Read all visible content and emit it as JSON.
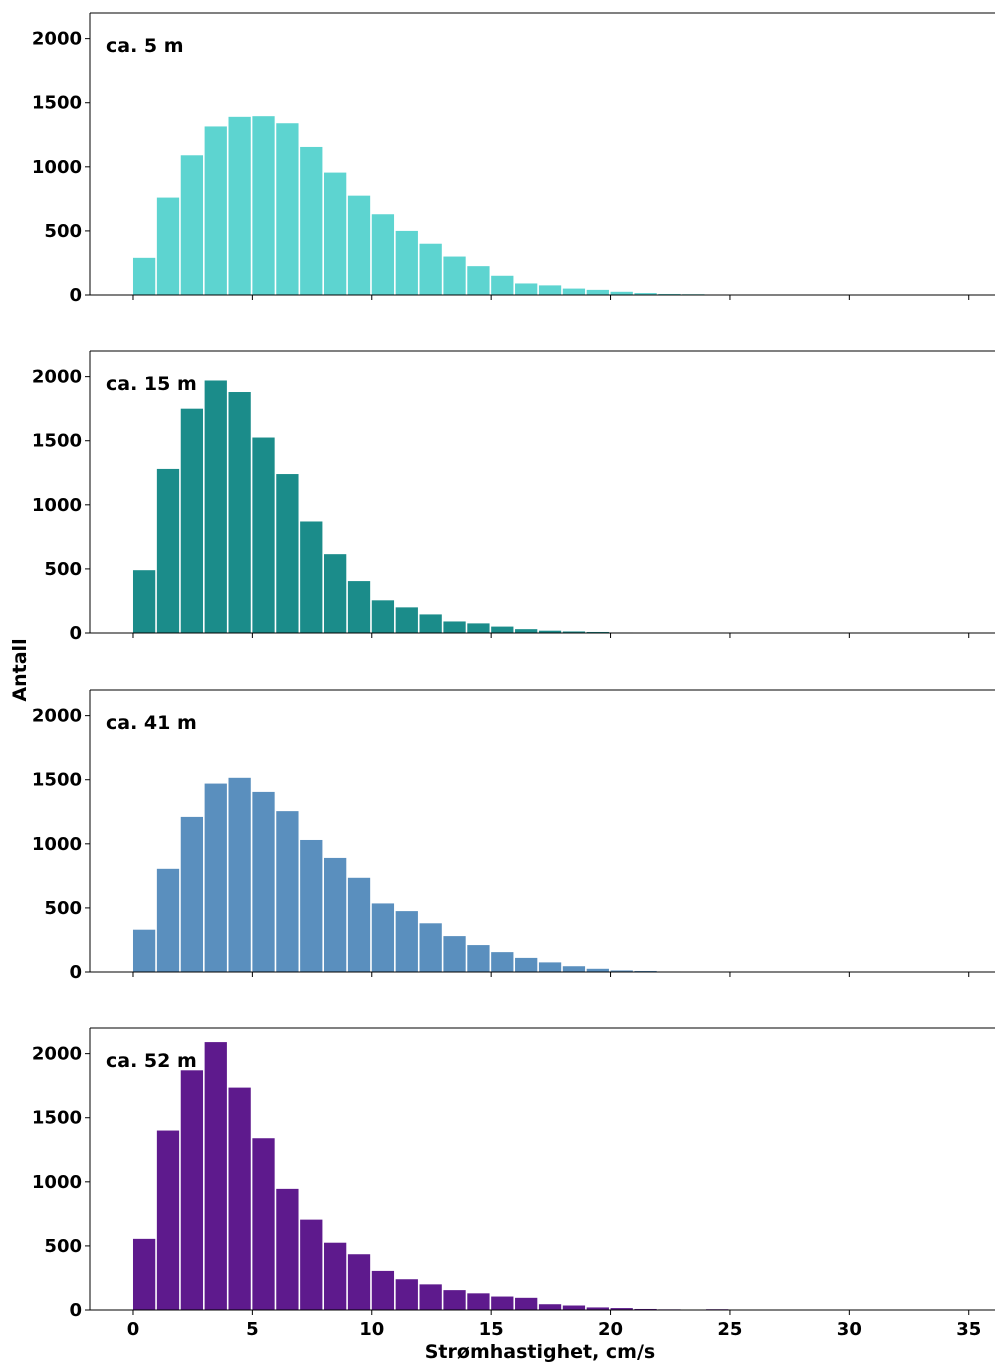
{
  "chart_data": {
    "type": "bar",
    "xlabel": "Strømhastighet, cm/s",
    "ylabel": "Antall",
    "xlim": [
      -1.8,
      36.1
    ],
    "ylim": [
      0,
      2200
    ],
    "x_ticks": [
      0,
      5,
      10,
      15,
      20,
      25,
      30,
      35
    ],
    "y_ticks": [
      0,
      500,
      1000,
      1500,
      2000
    ],
    "bin_width": 1,
    "x": [
      0,
      1,
      2,
      3,
      4,
      5,
      6,
      7,
      8,
      9,
      10,
      11,
      12,
      13,
      14,
      15,
      16,
      17,
      18,
      19,
      20,
      21,
      22,
      23,
      24,
      25,
      26,
      27,
      28,
      29,
      30,
      31,
      32,
      33,
      34,
      35
    ],
    "grid": false,
    "panels": [
      {
        "label": "ca. 5 m",
        "color": "#5dd4d0",
        "values": [
          290,
          760,
          1090,
          1315,
          1390,
          1395,
          1340,
          1155,
          955,
          775,
          630,
          500,
          400,
          300,
          225,
          150,
          90,
          75,
          50,
          40,
          25,
          15,
          8,
          6,
          3,
          2,
          1,
          1,
          1,
          0,
          0,
          0,
          0,
          0,
          0,
          0
        ]
      },
      {
        "label": "ca. 15 m",
        "color": "#1b8c8a",
        "values": [
          490,
          1280,
          1750,
          1970,
          1880,
          1525,
          1240,
          870,
          615,
          405,
          255,
          200,
          145,
          90,
          75,
          50,
          30,
          18,
          12,
          8,
          4,
          2,
          1,
          1,
          0,
          0,
          0,
          0,
          0,
          0,
          0,
          0,
          0,
          0,
          0,
          0
        ]
      },
      {
        "label": "ca. 41 m",
        "color": "#5a8fbe",
        "values": [
          330,
          805,
          1210,
          1470,
          1515,
          1405,
          1255,
          1030,
          890,
          735,
          535,
          475,
          380,
          280,
          210,
          155,
          110,
          75,
          45,
          25,
          12,
          8,
          4,
          2,
          1,
          1,
          1,
          0,
          0,
          0,
          0,
          0,
          0,
          0,
          0,
          0
        ]
      },
      {
        "label": "ca. 52 m",
        "color": "#5e1a8d",
        "values": [
          555,
          1400,
          1870,
          2090,
          1735,
          1340,
          945,
          705,
          525,
          435,
          305,
          240,
          200,
          155,
          130,
          105,
          95,
          45,
          35,
          20,
          15,
          8,
          5,
          3,
          6,
          2,
          1,
          1,
          0,
          0,
          0,
          0,
          0,
          0,
          0,
          0
        ]
      }
    ]
  }
}
